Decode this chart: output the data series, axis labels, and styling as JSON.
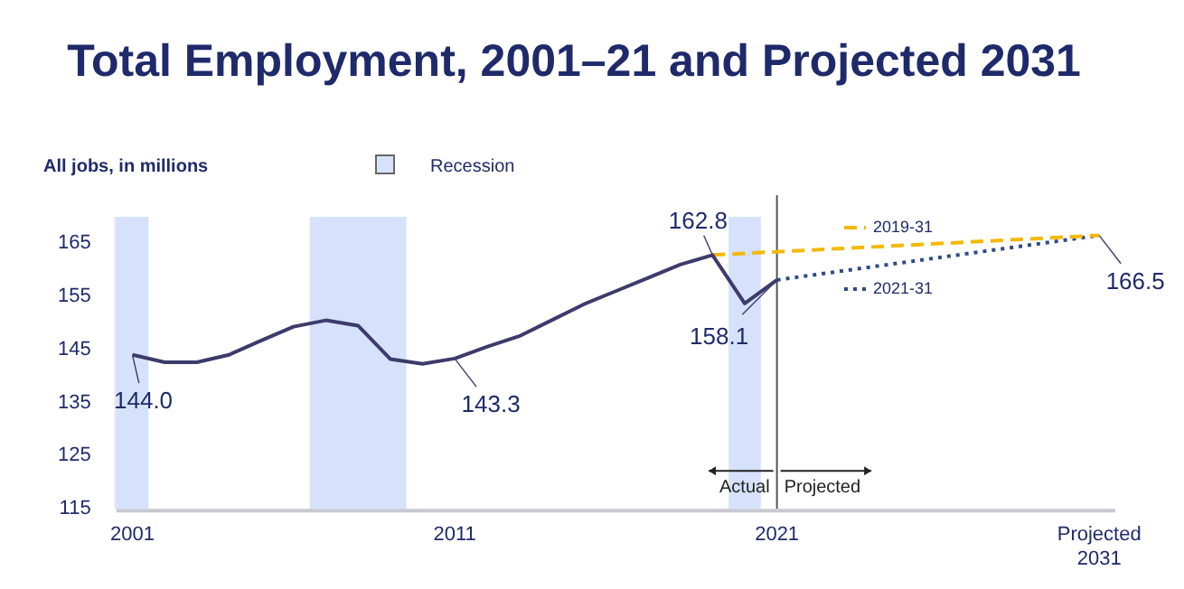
{
  "chart_data": {
    "type": "line",
    "title": "Total Employment, 2001–21 and Projected 2031",
    "ylabel": "All jobs, in millions",
    "x": [
      2001,
      2002,
      2003,
      2004,
      2005,
      2006,
      2007,
      2008,
      2009,
      2010,
      2011,
      2012,
      2013,
      2014,
      2015,
      2016,
      2017,
      2018,
      2019,
      2020,
      2021
    ],
    "series": [
      {
        "color": "#3d3b6b",
        "line_style": "solid",
        "values": [
          144.0,
          142.6,
          142.6,
          144.0,
          146.7,
          149.3,
          150.5,
          149.5,
          143.2,
          142.3,
          143.3,
          145.5,
          147.5,
          150.5,
          153.5,
          156.0,
          158.5,
          161.0,
          162.8,
          153.7,
          158.1
        ]
      },
      {
        "name": "2019-31",
        "color": "#f5b800",
        "line_style": "dashed",
        "x": [
          2019,
          2031
        ],
        "values": [
          162.8,
          166.5
        ]
      },
      {
        "name": "2021-31",
        "color": "#2f4a8a",
        "line_style": "dotted",
        "x": [
          2021,
          2031
        ],
        "values": [
          158.1,
          166.5
        ]
      }
    ],
    "xlim": [
      2000.5,
      2031.5
    ],
    "xticks": [
      2001,
      2011,
      2021,
      {
        "value": 2031,
        "label": "Projected 2031"
      }
    ],
    "ylim": [
      115,
      170
    ],
    "yticks": [
      115,
      125,
      135,
      145,
      155,
      165
    ],
    "grid": false,
    "legend": "top right",
    "marker": "none",
    "bands": [
      {
        "axis": "x",
        "from": 2000.5,
        "to": 2001.5,
        "label": "Recession",
        "color": "#d6e2fb"
      },
      {
        "axis": "x",
        "from": 2006.5,
        "to": 2009.5,
        "color": "#d6e2fb"
      },
      {
        "axis": "x",
        "from": 2019.5,
        "to": 2020.5,
        "color": "#d6e2fb"
      }
    ],
    "ref_lines": [
      {
        "axis": "x",
        "value": 2021,
        "color": "#555555",
        "line_style": "solid"
      }
    ],
    "annotations": [
      {
        "text": "144.0",
        "x": 2001,
        "y": 144.0
      },
      {
        "text": "143.3",
        "x": 2011,
        "y": 143.3
      },
      {
        "text": "162.8",
        "x": 2019,
        "y": 162.8
      },
      {
        "text": "158.1",
        "x": 2021,
        "y": 158.1
      },
      {
        "text": "166.5",
        "x": 2031,
        "y": 166.5
      },
      "Actual",
      "Projected"
    ]
  }
}
